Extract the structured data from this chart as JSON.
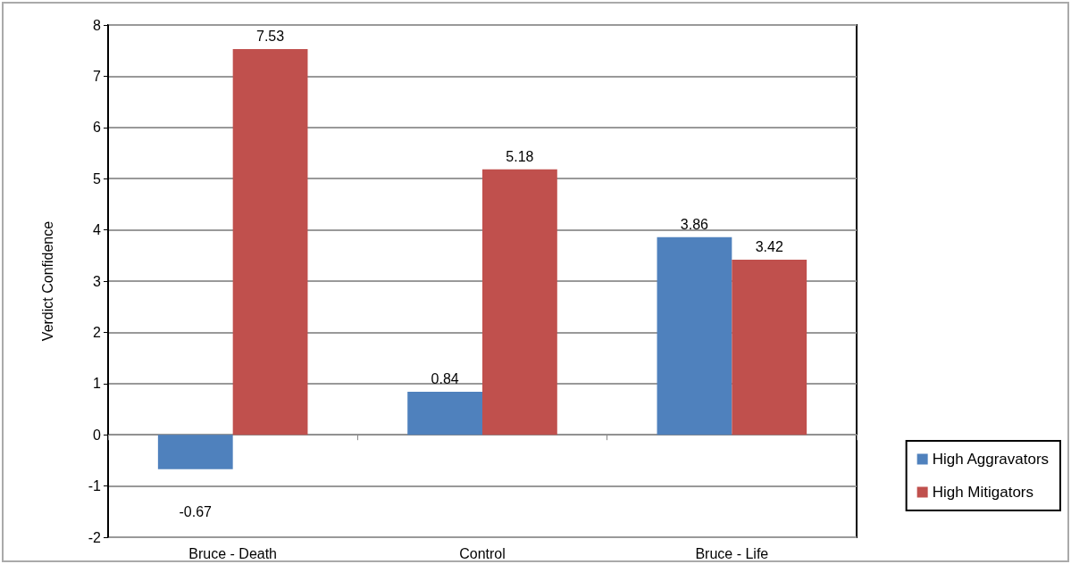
{
  "chart_data": {
    "type": "bar",
    "ylabel": "Verdict Confidence",
    "categories": [
      "Bruce - Death",
      "Control",
      "Bruce - Life"
    ],
    "series": [
      {
        "name": "High Aggravators",
        "color": "#4f81bd",
        "values": [
          -0.67,
          0.84,
          3.86
        ]
      },
      {
        "name": "High Mitigators",
        "color": "#c0504d",
        "values": [
          7.53,
          5.18,
          3.42
        ]
      }
    ],
    "ylim": [
      -2,
      8
    ],
    "yticks": [
      -2,
      -1,
      0,
      1,
      2,
      3,
      4,
      5,
      6,
      7,
      8
    ],
    "grid": "y",
    "legend": "right",
    "data_labels": true
  }
}
